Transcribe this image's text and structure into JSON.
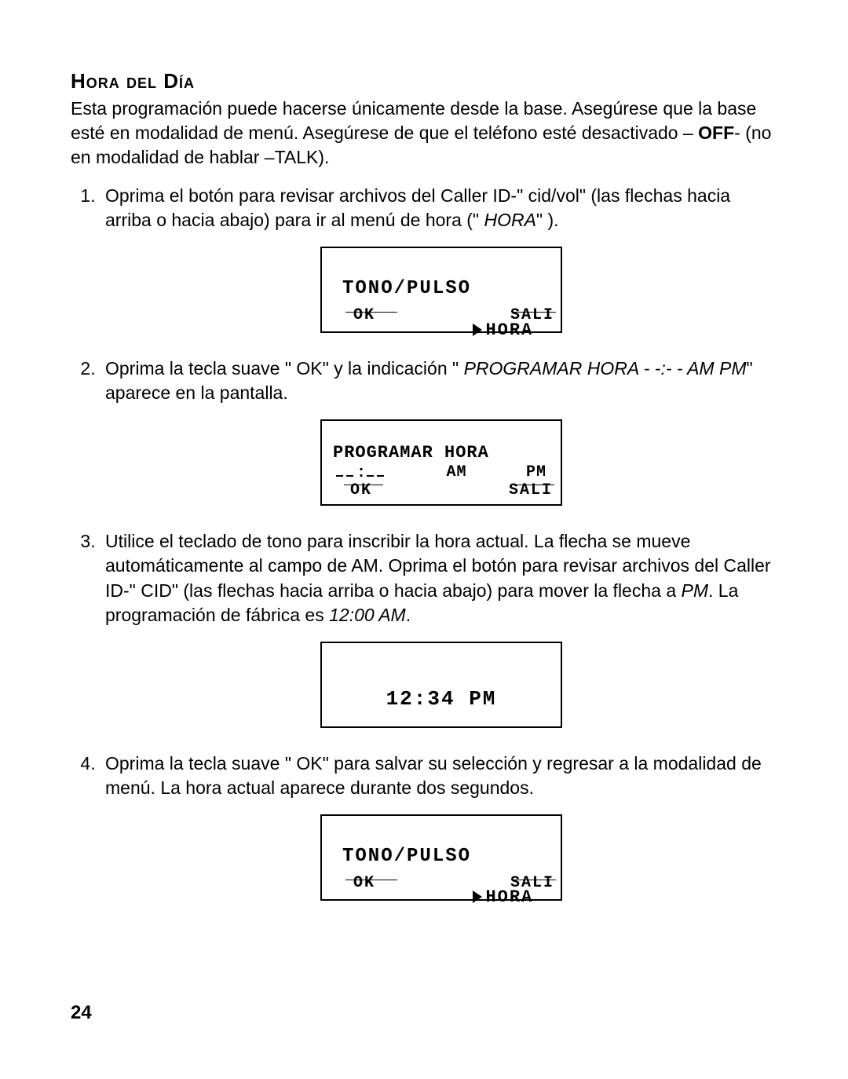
{
  "title": "Hora del Día",
  "intro": {
    "p1a": "Esta programación puede hacerse únicamente desde la base. Asegúrese que la base esté en modalidad de menú. Asegúrese de que el teléfono esté desactivado – ",
    "off": "OFF",
    "p1b": "- (no en modalidad de hablar –TALK)."
  },
  "steps": {
    "s1a": "Oprima el botón para revisar archivos del Caller ID-\" cid/vol\"  (las flechas hacia arriba o hacia abajo) para ir al menú de hora (\" ",
    "s1b": "HORA",
    "s1c": "\" ).",
    "s2a": "Oprima la tecla suave \" OK\"  y la indicación \" ",
    "s2b": "PROGRAMAR HORA - -:- - AM PM",
    "s2c": "\" aparece en la pantalla.",
    "s3a": "Utilice el teclado de tono para inscribir la hora actual. La flecha se mueve automáticamente al campo de AM. Oprima el botón para revisar archivos del Caller ID-\" CID\"  (las flechas hacia arriba o hacia abajo) para mover la flecha a ",
    "s3b": "PM",
    "s3c": ". La programación de fábrica es ",
    "s3d": "12:00 AM",
    "s3e": ".",
    "s4": "Oprima la tecla suave \" OK\"  para salvar su selección y regresar a la modalidad de menú. La hora actual aparece durante dos segundos."
  },
  "lcd": {
    "tonoPulso": "TONO/PULSO",
    "hora": "HORA",
    "ok": "OK",
    "sali": "SALI",
    "programar": "PROGRAMAR HORA",
    "am": "AM",
    "pm": "PM",
    "time": "12:34 PM"
  },
  "pageNumber": "24"
}
